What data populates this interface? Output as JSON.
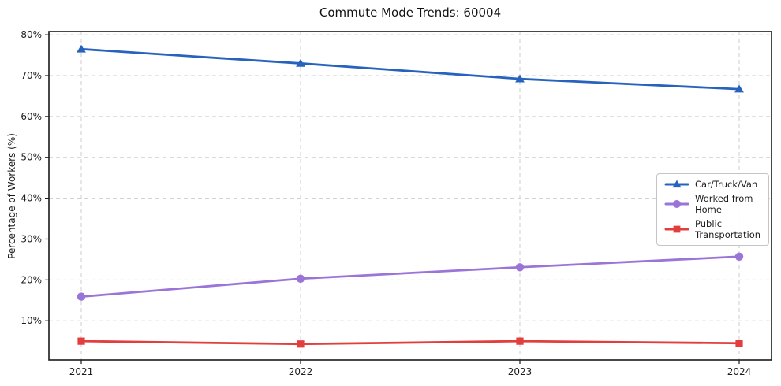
{
  "chart_data": {
    "type": "line",
    "title": "Commute Mode Trends: 60004",
    "xlabel": "",
    "ylabel": "Percentage of Workers (%)",
    "categories": [
      "2021",
      "2022",
      "2023",
      "2024"
    ],
    "series": [
      {
        "name": "Car/Truck/Van",
        "color": "#2763bd",
        "marker": "triangle",
        "values": [
          76.5,
          73.0,
          69.2,
          66.7
        ]
      },
      {
        "name": "Worked from Home",
        "color": "#9b74d8",
        "marker": "circle",
        "values": [
          15.9,
          20.3,
          23.1,
          25.7
        ]
      },
      {
        "name": "Public Transportation",
        "color": "#e33e3e",
        "marker": "square",
        "values": [
          5.0,
          4.3,
          5.0,
          4.5
        ]
      }
    ],
    "y_ticks": [
      10,
      20,
      30,
      40,
      50,
      60,
      70,
      80
    ],
    "y_tick_suffix": "%",
    "ylim": [
      0.4,
      80.8
    ],
    "grid": true,
    "grid_style": "dashed",
    "grid_color": "#cdcdcd",
    "spine_color": "#1a1a1a",
    "legend_position": "center-right"
  }
}
